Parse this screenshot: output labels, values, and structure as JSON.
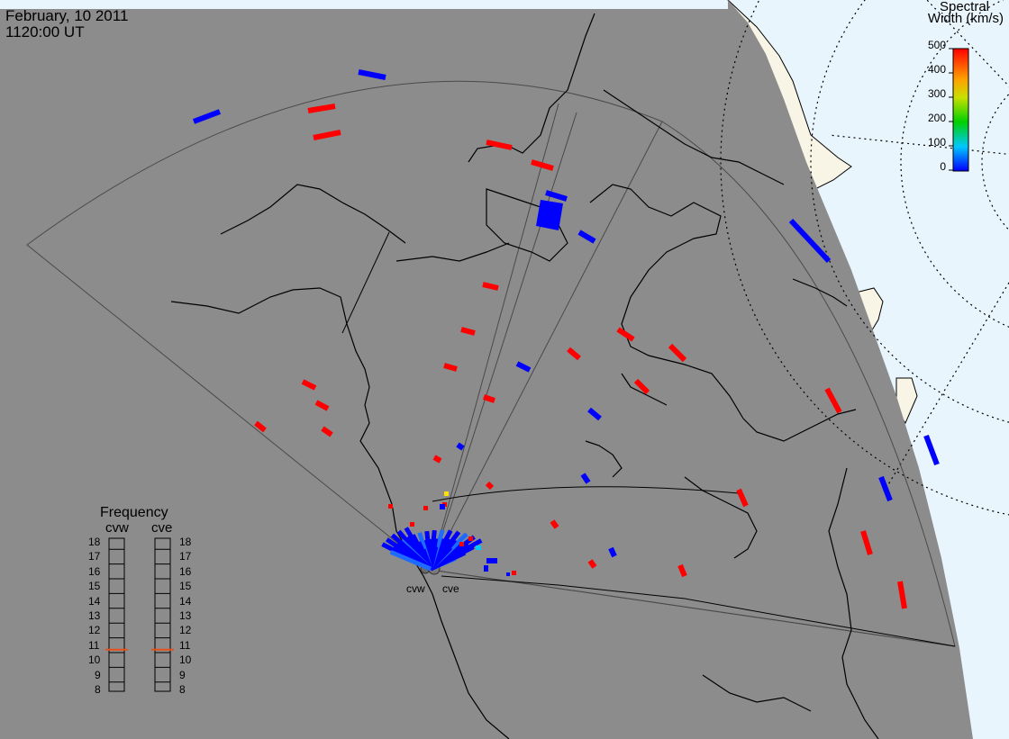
{
  "header": {
    "date": "February, 10 2011",
    "time": "1120:00 UT"
  },
  "colorbar": {
    "title_line1": "Spectral",
    "title_line2": "Width (km/s)",
    "ticks": [
      "500",
      "400",
      "300",
      "200",
      "100",
      "0"
    ],
    "range": [
      0,
      500
    ]
  },
  "frequency": {
    "title": "Frequency",
    "columns": [
      {
        "label": "cvw",
        "value": 10.7
      },
      {
        "label": "cve",
        "value": 10.7
      }
    ],
    "scale": [
      "18",
      "17",
      "16",
      "15",
      "14",
      "13",
      "12",
      "11",
      "10",
      "9",
      "8"
    ],
    "marker_color": "#e8501a"
  },
  "sites": [
    {
      "label": "cvw"
    },
    {
      "label": "cve"
    }
  ],
  "colors": {
    "land_background": "#8c8c8c",
    "ocean_day": "#e9f5fc",
    "land_day": "#f8f5e6",
    "high_width": "#ff0000",
    "low_width": "#0000ff"
  }
}
